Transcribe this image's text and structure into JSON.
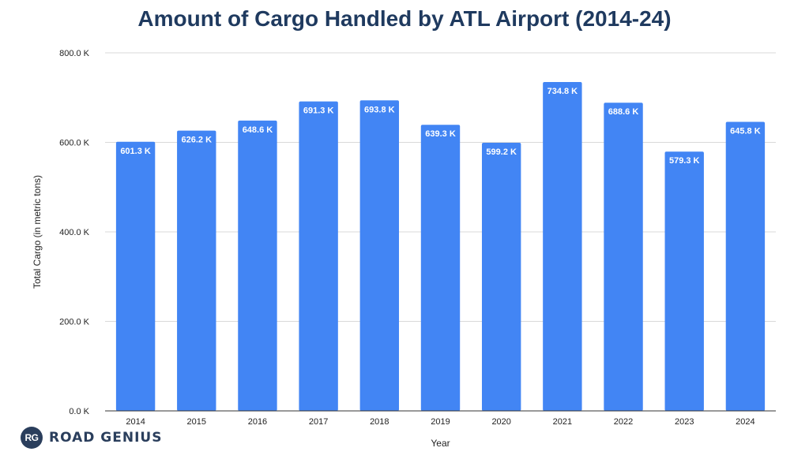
{
  "chart_data": {
    "type": "bar",
    "title": "Amount of Cargo Handled by ATL Airport (2014-24)",
    "xlabel": "Year",
    "ylabel": "Total Cargo (in metric tons)",
    "categories": [
      "2014",
      "2015",
      "2016",
      "2017",
      "2018",
      "2019",
      "2020",
      "2021",
      "2022",
      "2023",
      "2024"
    ],
    "values": [
      601.3,
      626.2,
      648.6,
      691.3,
      693.8,
      639.3,
      599.2,
      734.8,
      688.6,
      579.3,
      645.8
    ],
    "value_labels": [
      "601.3 K",
      "626.2 K",
      "648.6 K",
      "691.3 K",
      "693.8 K",
      "639.3 K",
      "599.2 K",
      "734.8 K",
      "688.6 K",
      "579.3 K",
      "645.8 K"
    ],
    "unit": "K",
    "ylim": [
      0,
      800
    ],
    "yticks": [
      0,
      200,
      400,
      600,
      800
    ],
    "ytick_labels": [
      "0.0 K",
      "200.0 K",
      "400.0 K",
      "600.0 K",
      "800.0 K"
    ],
    "grid": true,
    "bar_color": "#4285f4"
  },
  "logo": {
    "badge": "RG",
    "text": "ROAD GENIUS"
  }
}
